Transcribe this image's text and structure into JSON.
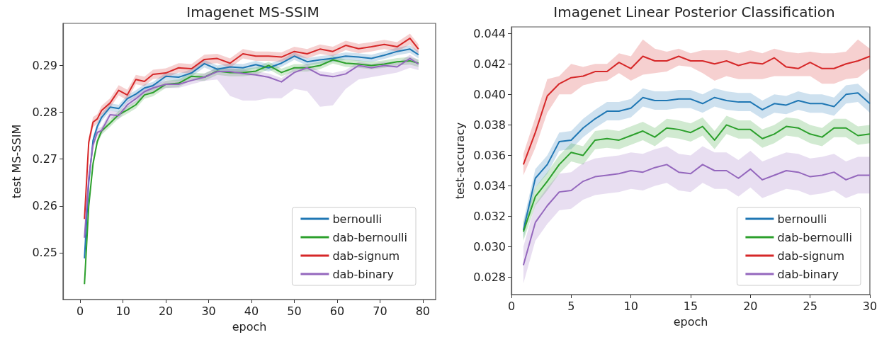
{
  "chart_data": [
    {
      "type": "line",
      "title": "Imagenet MS-SSIM",
      "xlabel": "epoch",
      "ylabel": "test MS-SSIM",
      "legend": "bottom right",
      "grid": false,
      "x": [
        1,
        2,
        3,
        4,
        5,
        7,
        9,
        11,
        13,
        15,
        17,
        20,
        23,
        26,
        29,
        32,
        35,
        38,
        41,
        44,
        47,
        50,
        53,
        56,
        59,
        62,
        65,
        68,
        71,
        74,
        77,
        79
      ],
      "xlim": [
        -4,
        83
      ],
      "xticks": [
        0,
        10,
        20,
        30,
        40,
        50,
        60,
        70,
        80
      ],
      "ylim": [
        0.24,
        0.299
      ],
      "yticks": [
        0.25,
        0.26,
        0.27,
        0.28,
        0.29
      ],
      "series": [
        {
          "name": "bernoulli",
          "color": "#1f77b4",
          "values": [
            0.2488,
            0.265,
            0.274,
            0.277,
            0.2789,
            0.2811,
            0.2808,
            0.2829,
            0.2839,
            0.2852,
            0.2857,
            0.2877,
            0.2875,
            0.2884,
            0.2904,
            0.2892,
            0.2897,
            0.2895,
            0.2902,
            0.2895,
            0.2905,
            0.292,
            0.2908,
            0.2912,
            0.2915,
            0.292,
            0.2918,
            0.2915,
            0.2922,
            0.293,
            0.2935,
            0.2923
          ],
          "lower": [
            0.248,
            0.2642,
            0.2732,
            0.2762,
            0.2781,
            0.2803,
            0.28,
            0.2821,
            0.2831,
            0.2844,
            0.2849,
            0.2869,
            0.2867,
            0.2876,
            0.2896,
            0.2884,
            0.2889,
            0.2887,
            0.2894,
            0.2887,
            0.2897,
            0.2912,
            0.29,
            0.2904,
            0.2907,
            0.2912,
            0.291,
            0.2907,
            0.2914,
            0.2922,
            0.2927,
            0.2915
          ],
          "upper": [
            0.2496,
            0.2658,
            0.2748,
            0.2778,
            0.2797,
            0.2819,
            0.2816,
            0.2837,
            0.2847,
            0.286,
            0.2865,
            0.2885,
            0.2883,
            0.2892,
            0.2912,
            0.29,
            0.2905,
            0.2903,
            0.291,
            0.2903,
            0.2913,
            0.2928,
            0.2916,
            0.292,
            0.2923,
            0.2928,
            0.2926,
            0.2923,
            0.293,
            0.2938,
            0.2943,
            0.2931
          ]
        },
        {
          "name": "dab-bernoulli",
          "color": "#2ca02c",
          "values": [
            0.2433,
            0.26,
            0.269,
            0.2738,
            0.276,
            0.2777,
            0.2795,
            0.2805,
            0.2816,
            0.2837,
            0.2842,
            0.286,
            0.2862,
            0.2877,
            0.2875,
            0.2888,
            0.2885,
            0.2885,
            0.2888,
            0.29,
            0.2885,
            0.2895,
            0.2895,
            0.29,
            0.2912,
            0.2905,
            0.2903,
            0.29,
            0.2903,
            0.2908,
            0.291,
            0.2905
          ],
          "lower": [
            0.2425,
            0.2592,
            0.2682,
            0.273,
            0.2752,
            0.2769,
            0.2787,
            0.2797,
            0.2808,
            0.2829,
            0.2834,
            0.2852,
            0.2854,
            0.2869,
            0.2867,
            0.288,
            0.2877,
            0.2877,
            0.288,
            0.2892,
            0.2877,
            0.2887,
            0.2887,
            0.2892,
            0.2904,
            0.2897,
            0.2895,
            0.2892,
            0.2895,
            0.29,
            0.2902,
            0.2897
          ],
          "upper": [
            0.2441,
            0.2608,
            0.2698,
            0.2746,
            0.2768,
            0.2785,
            0.2803,
            0.2813,
            0.2824,
            0.2845,
            0.285,
            0.2868,
            0.287,
            0.2885,
            0.2883,
            0.2896,
            0.2893,
            0.2893,
            0.2896,
            0.2908,
            0.2893,
            0.2903,
            0.2903,
            0.2908,
            0.292,
            0.2913,
            0.2911,
            0.2908,
            0.2911,
            0.2916,
            0.2918,
            0.2913
          ]
        },
        {
          "name": "dab-signum",
          "color": "#d62728",
          "values": [
            0.2572,
            0.2736,
            0.2779,
            0.2786,
            0.2804,
            0.282,
            0.2847,
            0.2837,
            0.287,
            0.2866,
            0.2881,
            0.2884,
            0.2895,
            0.2893,
            0.2913,
            0.2915,
            0.2905,
            0.2925,
            0.292,
            0.292,
            0.2918,
            0.293,
            0.2925,
            0.2935,
            0.293,
            0.2943,
            0.2936,
            0.294,
            0.2945,
            0.294,
            0.2958,
            0.2935
          ],
          "lower": [
            0.2564,
            0.2726,
            0.2768,
            0.2776,
            0.2794,
            0.281,
            0.2836,
            0.2826,
            0.286,
            0.2856,
            0.2871,
            0.2874,
            0.2885,
            0.2883,
            0.2903,
            0.2905,
            0.2895,
            0.2915,
            0.291,
            0.291,
            0.2908,
            0.292,
            0.2915,
            0.2925,
            0.292,
            0.2933,
            0.2926,
            0.293,
            0.2935,
            0.293,
            0.2945,
            0.2925
          ],
          "upper": [
            0.258,
            0.2746,
            0.279,
            0.2796,
            0.2814,
            0.283,
            0.2858,
            0.2848,
            0.288,
            0.2876,
            0.2891,
            0.2894,
            0.2905,
            0.2903,
            0.2923,
            0.2925,
            0.2915,
            0.2935,
            0.293,
            0.293,
            0.2928,
            0.294,
            0.2935,
            0.2945,
            0.294,
            0.2953,
            0.2946,
            0.295,
            0.2955,
            0.295,
            0.2968,
            0.2945
          ]
        },
        {
          "name": "dab-binary",
          "color": "#9467bd",
          "values": [
            0.2532,
            0.266,
            0.273,
            0.2757,
            0.2761,
            0.2795,
            0.2793,
            0.2816,
            0.2829,
            0.2844,
            0.2852,
            0.286,
            0.286,
            0.2868,
            0.2875,
            0.2887,
            0.2887,
            0.2883,
            0.288,
            0.2875,
            0.2865,
            0.2885,
            0.2895,
            0.288,
            0.2876,
            0.2882,
            0.29,
            0.2895,
            0.29,
            0.2897,
            0.2915,
            0.2903
          ],
          "lower": [
            0.2524,
            0.2652,
            0.2722,
            0.2749,
            0.2753,
            0.2787,
            0.2785,
            0.2808,
            0.2821,
            0.2836,
            0.2844,
            0.2852,
            0.2852,
            0.286,
            0.2867,
            0.287,
            0.2835,
            0.2825,
            0.2825,
            0.283,
            0.283,
            0.285,
            0.2845,
            0.2812,
            0.2815,
            0.285,
            0.287,
            0.2875,
            0.288,
            0.2885,
            0.2895,
            0.289
          ],
          "upper": [
            0.254,
            0.2668,
            0.2738,
            0.2765,
            0.2769,
            0.2803,
            0.2801,
            0.2824,
            0.2837,
            0.2852,
            0.286,
            0.2868,
            0.2868,
            0.2876,
            0.2883,
            0.2895,
            0.2895,
            0.2891,
            0.2888,
            0.2883,
            0.2873,
            0.2893,
            0.2903,
            0.2888,
            0.2884,
            0.289,
            0.2908,
            0.2903,
            0.2908,
            0.2905,
            0.2923,
            0.2911
          ]
        }
      ]
    },
    {
      "type": "line",
      "title": "Imagenet Linear Posterior Classification",
      "xlabel": "epoch",
      "ylabel": "test-accuracy",
      "legend": "bottom right",
      "grid": false,
      "x": [
        1,
        2,
        3,
        4,
        5,
        6,
        7,
        8,
        9,
        10,
        11,
        12,
        13,
        14,
        15,
        16,
        17,
        18,
        19,
        20,
        21,
        22,
        23,
        24,
        25,
        26,
        27,
        28,
        29,
        30
      ],
      "xlim": [
        0,
        30
      ],
      "xticks": [
        0,
        5,
        10,
        15,
        20,
        25,
        30
      ],
      "ylim": [
        0.02687,
        0.04443
      ],
      "yticks": [
        {
          "value": 0.028,
          "label": "0.028"
        },
        {
          "value": 0.03,
          "label": "0.030"
        },
        {
          "value": 0.032,
          "label": "0.032"
        },
        {
          "value": 0.034,
          "label": "0.034"
        },
        {
          "value": 0.036,
          "label": "0.036"
        },
        {
          "value": 0.038,
          "label": "0.038"
        },
        {
          "value": 0.04,
          "label": "0.040"
        },
        {
          "value": 0.042,
          "label": "0.042"
        },
        {
          "value": 0.044,
          "label": "0.044"
        }
      ],
      "series": [
        {
          "name": "bernoulli",
          "color": "#1f77b4",
          "values": [
            0.0311,
            0.0345,
            0.0354,
            0.0369,
            0.037,
            0.0378,
            0.0384,
            0.0389,
            0.0389,
            0.0391,
            0.0398,
            0.0396,
            0.0396,
            0.0397,
            0.0397,
            0.0394,
            0.0398,
            0.0396,
            0.0395,
            0.0395,
            0.039,
            0.0394,
            0.0393,
            0.0396,
            0.0394,
            0.0394,
            0.0392,
            0.04,
            0.0401,
            0.0394
          ],
          "lower": [
            0.0305,
            0.0339,
            0.0348,
            0.0363,
            0.0364,
            0.0372,
            0.0378,
            0.0383,
            0.0383,
            0.0385,
            0.0392,
            0.039,
            0.039,
            0.0391,
            0.0391,
            0.0388,
            0.0392,
            0.039,
            0.0389,
            0.0389,
            0.0384,
            0.0388,
            0.0387,
            0.039,
            0.0388,
            0.0388,
            0.0386,
            0.0394,
            0.0395,
            0.0388
          ],
          "upper": [
            0.0317,
            0.0351,
            0.036,
            0.0375,
            0.0376,
            0.0384,
            0.039,
            0.0395,
            0.0395,
            0.0397,
            0.0404,
            0.0402,
            0.0402,
            0.0403,
            0.0403,
            0.04,
            0.0404,
            0.0402,
            0.0401,
            0.0401,
            0.0396,
            0.04,
            0.0399,
            0.0402,
            0.04,
            0.04,
            0.0398,
            0.0406,
            0.0407,
            0.04
          ]
        },
        {
          "name": "dab-bernoulli",
          "color": "#2ca02c",
          "values": [
            0.031,
            0.0333,
            0.0343,
            0.0354,
            0.0362,
            0.036,
            0.037,
            0.0371,
            0.037,
            0.0373,
            0.0376,
            0.0372,
            0.0378,
            0.0377,
            0.0375,
            0.0379,
            0.037,
            0.038,
            0.0377,
            0.0377,
            0.0371,
            0.0374,
            0.0379,
            0.0378,
            0.0374,
            0.0372,
            0.0378,
            0.0378,
            0.0373,
            0.0374
          ],
          "lower": [
            0.0304,
            0.0327,
            0.0337,
            0.0348,
            0.0356,
            0.0354,
            0.0364,
            0.0365,
            0.0364,
            0.0367,
            0.037,
            0.0366,
            0.0372,
            0.0371,
            0.0369,
            0.0373,
            0.0364,
            0.0374,
            0.0371,
            0.0371,
            0.0365,
            0.0368,
            0.0373,
            0.0372,
            0.0368,
            0.0366,
            0.0372,
            0.0372,
            0.0367,
            0.0368
          ],
          "upper": [
            0.0316,
            0.0339,
            0.0349,
            0.036,
            0.0368,
            0.0366,
            0.0376,
            0.0377,
            0.0376,
            0.0379,
            0.0382,
            0.0378,
            0.0384,
            0.0383,
            0.0381,
            0.0385,
            0.0376,
            0.0386,
            0.0383,
            0.0383,
            0.0377,
            0.038,
            0.0385,
            0.0384,
            0.038,
            0.0378,
            0.0384,
            0.0384,
            0.0379,
            0.038
          ]
        },
        {
          "name": "dab-signum",
          "color": "#d62728",
          "values": [
            0.0354,
            0.0375,
            0.0399,
            0.0407,
            0.0411,
            0.0412,
            0.0415,
            0.0415,
            0.0421,
            0.0417,
            0.0425,
            0.0422,
            0.0422,
            0.0425,
            0.0422,
            0.0422,
            0.042,
            0.0422,
            0.0419,
            0.0421,
            0.042,
            0.0424,
            0.0418,
            0.0417,
            0.0421,
            0.0417,
            0.0417,
            0.042,
            0.0422,
            0.0425
          ],
          "lower": [
            0.0347,
            0.0365,
            0.0388,
            0.04,
            0.04,
            0.0406,
            0.0408,
            0.0409,
            0.0414,
            0.0409,
            0.0413,
            0.0414,
            0.0415,
            0.0419,
            0.0418,
            0.0414,
            0.0409,
            0.0412,
            0.041,
            0.041,
            0.041,
            0.0412,
            0.0412,
            0.0412,
            0.0412,
            0.0407,
            0.0407,
            0.041,
            0.0411,
            0.0417
          ],
          "upper": [
            0.0361,
            0.0385,
            0.041,
            0.0412,
            0.042,
            0.0418,
            0.042,
            0.042,
            0.0427,
            0.0425,
            0.0436,
            0.043,
            0.0428,
            0.043,
            0.0427,
            0.0429,
            0.0429,
            0.0429,
            0.0427,
            0.0429,
            0.0427,
            0.043,
            0.0428,
            0.0427,
            0.0428,
            0.0427,
            0.0427,
            0.0428,
            0.0436,
            0.043
          ]
        },
        {
          "name": "dab-binary",
          "color": "#9467bd",
          "values": [
            0.0288,
            0.0316,
            0.0327,
            0.0336,
            0.0337,
            0.0343,
            0.0346,
            0.0347,
            0.0348,
            0.035,
            0.0349,
            0.0352,
            0.0354,
            0.0349,
            0.0348,
            0.0354,
            0.035,
            0.035,
            0.0345,
            0.0351,
            0.0344,
            0.0347,
            0.035,
            0.0349,
            0.0346,
            0.0347,
            0.0349,
            0.0344,
            0.0347,
            0.0347
          ],
          "lower": [
            0.0276,
            0.0304,
            0.0315,
            0.0324,
            0.0325,
            0.0331,
            0.0334,
            0.0335,
            0.0336,
            0.0338,
            0.0337,
            0.034,
            0.0342,
            0.0337,
            0.0336,
            0.0342,
            0.0338,
            0.0338,
            0.0333,
            0.0339,
            0.0332,
            0.0335,
            0.0338,
            0.0337,
            0.0334,
            0.0335,
            0.0337,
            0.0332,
            0.0335,
            0.0335
          ],
          "upper": [
            0.03,
            0.0328,
            0.0339,
            0.0348,
            0.0349,
            0.0355,
            0.0358,
            0.0359,
            0.036,
            0.0362,
            0.0361,
            0.0364,
            0.0366,
            0.0361,
            0.036,
            0.0366,
            0.0362,
            0.0362,
            0.0357,
            0.0363,
            0.0356,
            0.0359,
            0.0362,
            0.0361,
            0.0358,
            0.0359,
            0.0361,
            0.0356,
            0.0359,
            0.0359
          ]
        }
      ]
    }
  ]
}
